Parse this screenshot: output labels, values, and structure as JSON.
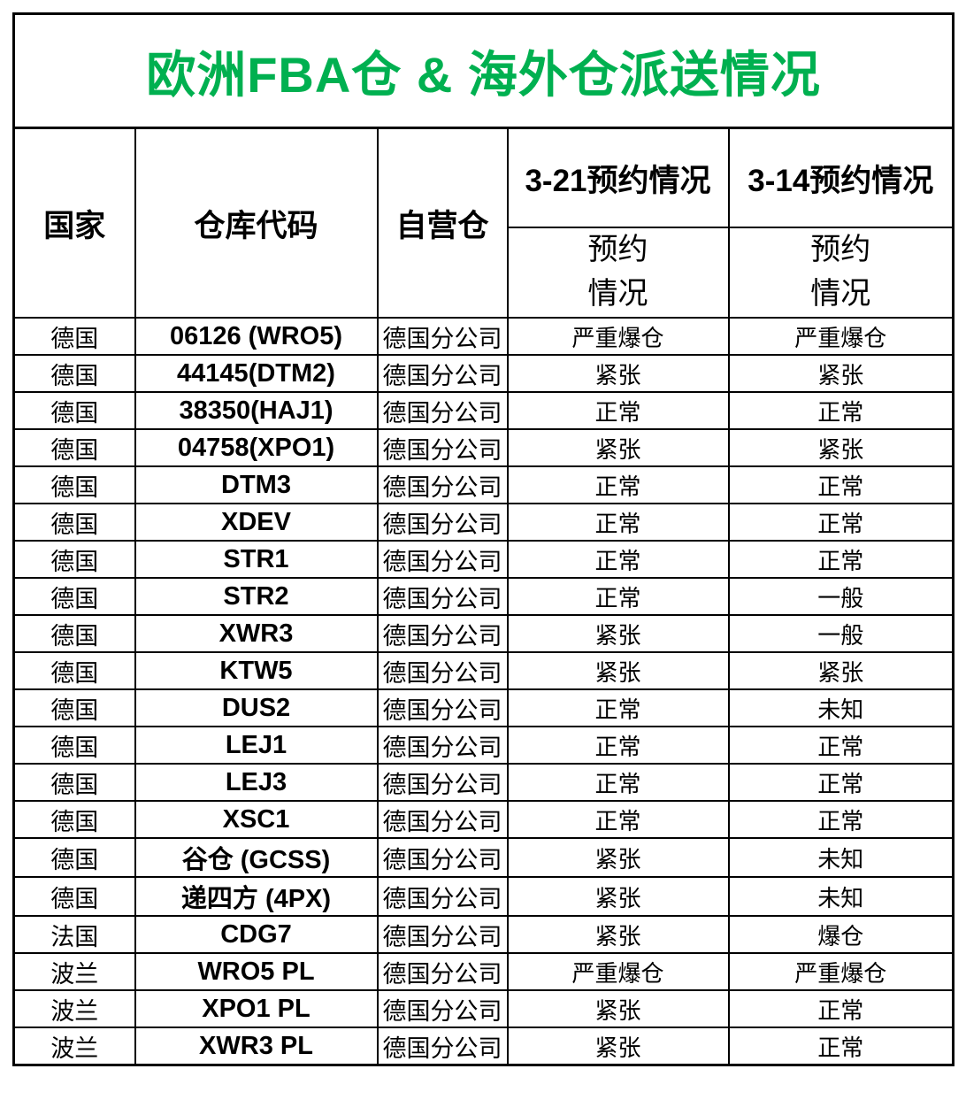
{
  "title": "欧洲FBA仓 & 海外仓派送情况",
  "title_color": "#00b050",
  "table": {
    "headers": {
      "country": "国家",
      "code": "仓库代码",
      "own": "自营仓",
      "group_3_21": "3-21预约情况",
      "group_3_14": "3-14预约情况",
      "sub_3_21": "预约\n情况",
      "sub_3_14": "预约\n情况"
    },
    "rows": [
      {
        "country": "德国",
        "code": "06126 (WRO5)",
        "own": "德国分公司",
        "s21": "严重爆仓",
        "s14": "严重爆仓"
      },
      {
        "country": "德国",
        "code": "44145(DTM2)",
        "own": "德国分公司",
        "s21": "紧张",
        "s14": "紧张"
      },
      {
        "country": "德国",
        "code": "38350(HAJ1)",
        "own": "德国分公司",
        "s21": "正常",
        "s14": "正常"
      },
      {
        "country": "德国",
        "code": "04758(XPO1)",
        "own": "德国分公司",
        "s21": "紧张",
        "s14": "紧张"
      },
      {
        "country": "德国",
        "code": "DTM3",
        "own": "德国分公司",
        "s21": "正常",
        "s14": "正常"
      },
      {
        "country": "德国",
        "code": "XDEV",
        "own": "德国分公司",
        "s21": "正常",
        "s14": "正常"
      },
      {
        "country": "德国",
        "code": "STR1",
        "own": "德国分公司",
        "s21": "正常",
        "s14": "正常"
      },
      {
        "country": "德国",
        "code": "STR2",
        "own": "德国分公司",
        "s21": "正常",
        "s14": "一般"
      },
      {
        "country": "德国",
        "code": "XWR3",
        "own": "德国分公司",
        "s21": "紧张",
        "s14": "一般"
      },
      {
        "country": "德国",
        "code": "KTW5",
        "own": "德国分公司",
        "s21": "紧张",
        "s14": "紧张"
      },
      {
        "country": "德国",
        "code": "DUS2",
        "own": "德国分公司",
        "s21": "正常",
        "s14": "未知"
      },
      {
        "country": "德国",
        "code": "LEJ1",
        "own": "德国分公司",
        "s21": "正常",
        "s14": "正常"
      },
      {
        "country": "德国",
        "code": "LEJ3",
        "own": "德国分公司",
        "s21": "正常",
        "s14": "正常"
      },
      {
        "country": "德国",
        "code": "XSC1",
        "own": "德国分公司",
        "s21": "正常",
        "s14": "正常"
      },
      {
        "country": "德国",
        "code": "谷仓 (GCSS)",
        "own": "德国分公司",
        "s21": "紧张",
        "s14": "未知"
      },
      {
        "country": "德国",
        "code": "递四方 (4PX)",
        "own": "德国分公司",
        "s21": "紧张",
        "s14": "未知"
      },
      {
        "country": "法国",
        "code": "CDG7",
        "own": "德国分公司",
        "s21": "紧张",
        "s14": "爆仓"
      },
      {
        "country": "波兰",
        "code": "WRO5 PL",
        "own": "德国分公司",
        "s21": "严重爆仓",
        "s14": "严重爆仓"
      },
      {
        "country": "波兰",
        "code": "XPO1 PL",
        "own": "德国分公司",
        "s21": "紧张",
        "s14": "正常"
      },
      {
        "country": "波兰",
        "code": "XWR3 PL",
        "own": "德国分公司",
        "s21": "紧张",
        "s14": "正常"
      }
    ]
  }
}
